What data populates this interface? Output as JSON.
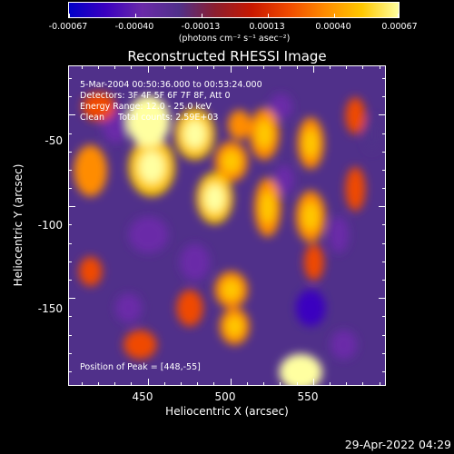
{
  "colorbar": {
    "labels": [
      "-0.00067",
      "-0.00040",
      "-0.00013",
      "0.00013",
      "0.00040",
      "0.00067"
    ],
    "units": "(photons cm⁻² s⁻¹ asec⁻²)"
  },
  "title": "Reconstructed RHESSI Image",
  "annotations": {
    "time": "5-Mar-2004 00:50:36.000 to 00:53:24.000",
    "detectors": "Detectors: 3F 4F 5F 6F 7F 8F, Att 0",
    "energy": "Energy Range: 12.0 - 25.0 keV",
    "clean": "Clean     Total counts: 2.59E+03",
    "peak": "Position of Peak = [448,-55]"
  },
  "axes": {
    "xlabel": "Heliocentric X (arcsec)",
    "ylabel": "Heliocentric Y (arcsec)",
    "xticks": [
      "450",
      "500",
      "550"
    ],
    "yticks": [
      "-50",
      "-100",
      "-150"
    ]
  },
  "timestamp": "29-Apr-2022 04:29",
  "colors": {
    "background": "#000000",
    "foreground": "#ffffff",
    "colormap": [
      "#0000c8",
      "#3b00c0",
      "#6a2aa8",
      "#50308a",
      "#8c1e2e",
      "#c81800",
      "#f04a00",
      "#ff8c00",
      "#ffc800",
      "#ffffa0"
    ]
  },
  "chart_data": {
    "type": "heatmap",
    "title": "Reconstructed RHESSI Image",
    "xlabel": "Heliocentric X (arcsec)",
    "ylabel": "Heliocentric Y (arcsec)",
    "xlim": [
      402,
      594
    ],
    "ylim": [
      -198,
      -23
    ],
    "colorbar_range": [
      -0.00067,
      0.00067
    ],
    "peak": [
      448,
      -55
    ],
    "blobs": [
      {
        "x": 450,
        "y": -53,
        "w": 13,
        "h": 14,
        "v": 0.00067
      },
      {
        "x": 452,
        "y": -78,
        "w": 14,
        "h": 16,
        "v": 0.00052
      },
      {
        "x": 478,
        "y": -60,
        "w": 12,
        "h": 14,
        "v": 0.0005
      },
      {
        "x": 490,
        "y": -95,
        "w": 11,
        "h": 14,
        "v": 0.00056
      },
      {
        "x": 500,
        "y": -75,
        "w": 10,
        "h": 11,
        "v": 0.0004
      },
      {
        "x": 505,
        "y": -55,
        "w": 7,
        "h": 8,
        "v": 0.0003
      },
      {
        "x": 520,
        "y": -60,
        "w": 9,
        "h": 14,
        "v": 0.00032
      },
      {
        "x": 522,
        "y": -100,
        "w": 8,
        "h": 16,
        "v": 0.0004
      },
      {
        "x": 548,
        "y": -65,
        "w": 8,
        "h": 14,
        "v": 0.00032
      },
      {
        "x": 548,
        "y": -105,
        "w": 9,
        "h": 14,
        "v": 0.00035
      },
      {
        "x": 550,
        "y": -130,
        "w": 6,
        "h": 10,
        "v": 0.00025
      },
      {
        "x": 575,
        "y": -50,
        "w": 6,
        "h": 10,
        "v": 0.00025
      },
      {
        "x": 575,
        "y": -90,
        "w": 6,
        "h": 12,
        "v": 0.00028
      },
      {
        "x": 415,
        "y": -80,
        "w": 10,
        "h": 14,
        "v": 0.0003
      },
      {
        "x": 420,
        "y": -45,
        "w": 10,
        "h": 8,
        "v": 0.00025
      },
      {
        "x": 415,
        "y": -135,
        "w": 7,
        "h": 8,
        "v": 0.0002
      },
      {
        "x": 500,
        "y": -145,
        "w": 10,
        "h": 10,
        "v": 0.0004
      },
      {
        "x": 502,
        "y": -165,
        "w": 9,
        "h": 10,
        "v": 0.00032
      },
      {
        "x": 542,
        "y": -190,
        "w": 13,
        "h": 10,
        "v": 0.0006
      },
      {
        "x": 445,
        "y": -175,
        "w": 10,
        "h": 8,
        "v": 0.0002
      },
      {
        "x": 475,
        "y": -155,
        "w": 8,
        "h": 10,
        "v": 0.00025
      },
      {
        "x": 430,
        "y": -55,
        "w": 8,
        "h": 10,
        "v": -0.0004
      },
      {
        "x": 450,
        "y": -115,
        "w": 12,
        "h": 10,
        "v": -0.00035
      },
      {
        "x": 478,
        "y": -130,
        "w": 9,
        "h": 10,
        "v": -0.0004
      },
      {
        "x": 530,
        "y": -45,
        "w": 7,
        "h": 7,
        "v": -0.00038
      },
      {
        "x": 532,
        "y": -85,
        "w": 6,
        "h": 8,
        "v": -0.0004
      },
      {
        "x": 548,
        "y": -155,
        "w": 9,
        "h": 10,
        "v": -0.00045
      },
      {
        "x": 565,
        "y": -115,
        "w": 6,
        "h": 10,
        "v": -0.0003
      },
      {
        "x": 438,
        "y": -155,
        "w": 8,
        "h": 8,
        "v": -0.0003
      },
      {
        "x": 568,
        "y": -175,
        "w": 8,
        "h": 8,
        "v": -0.0003
      },
      {
        "x": 585,
        "y": -60,
        "w": 5,
        "h": 10,
        "v": -0.00025
      }
    ]
  }
}
